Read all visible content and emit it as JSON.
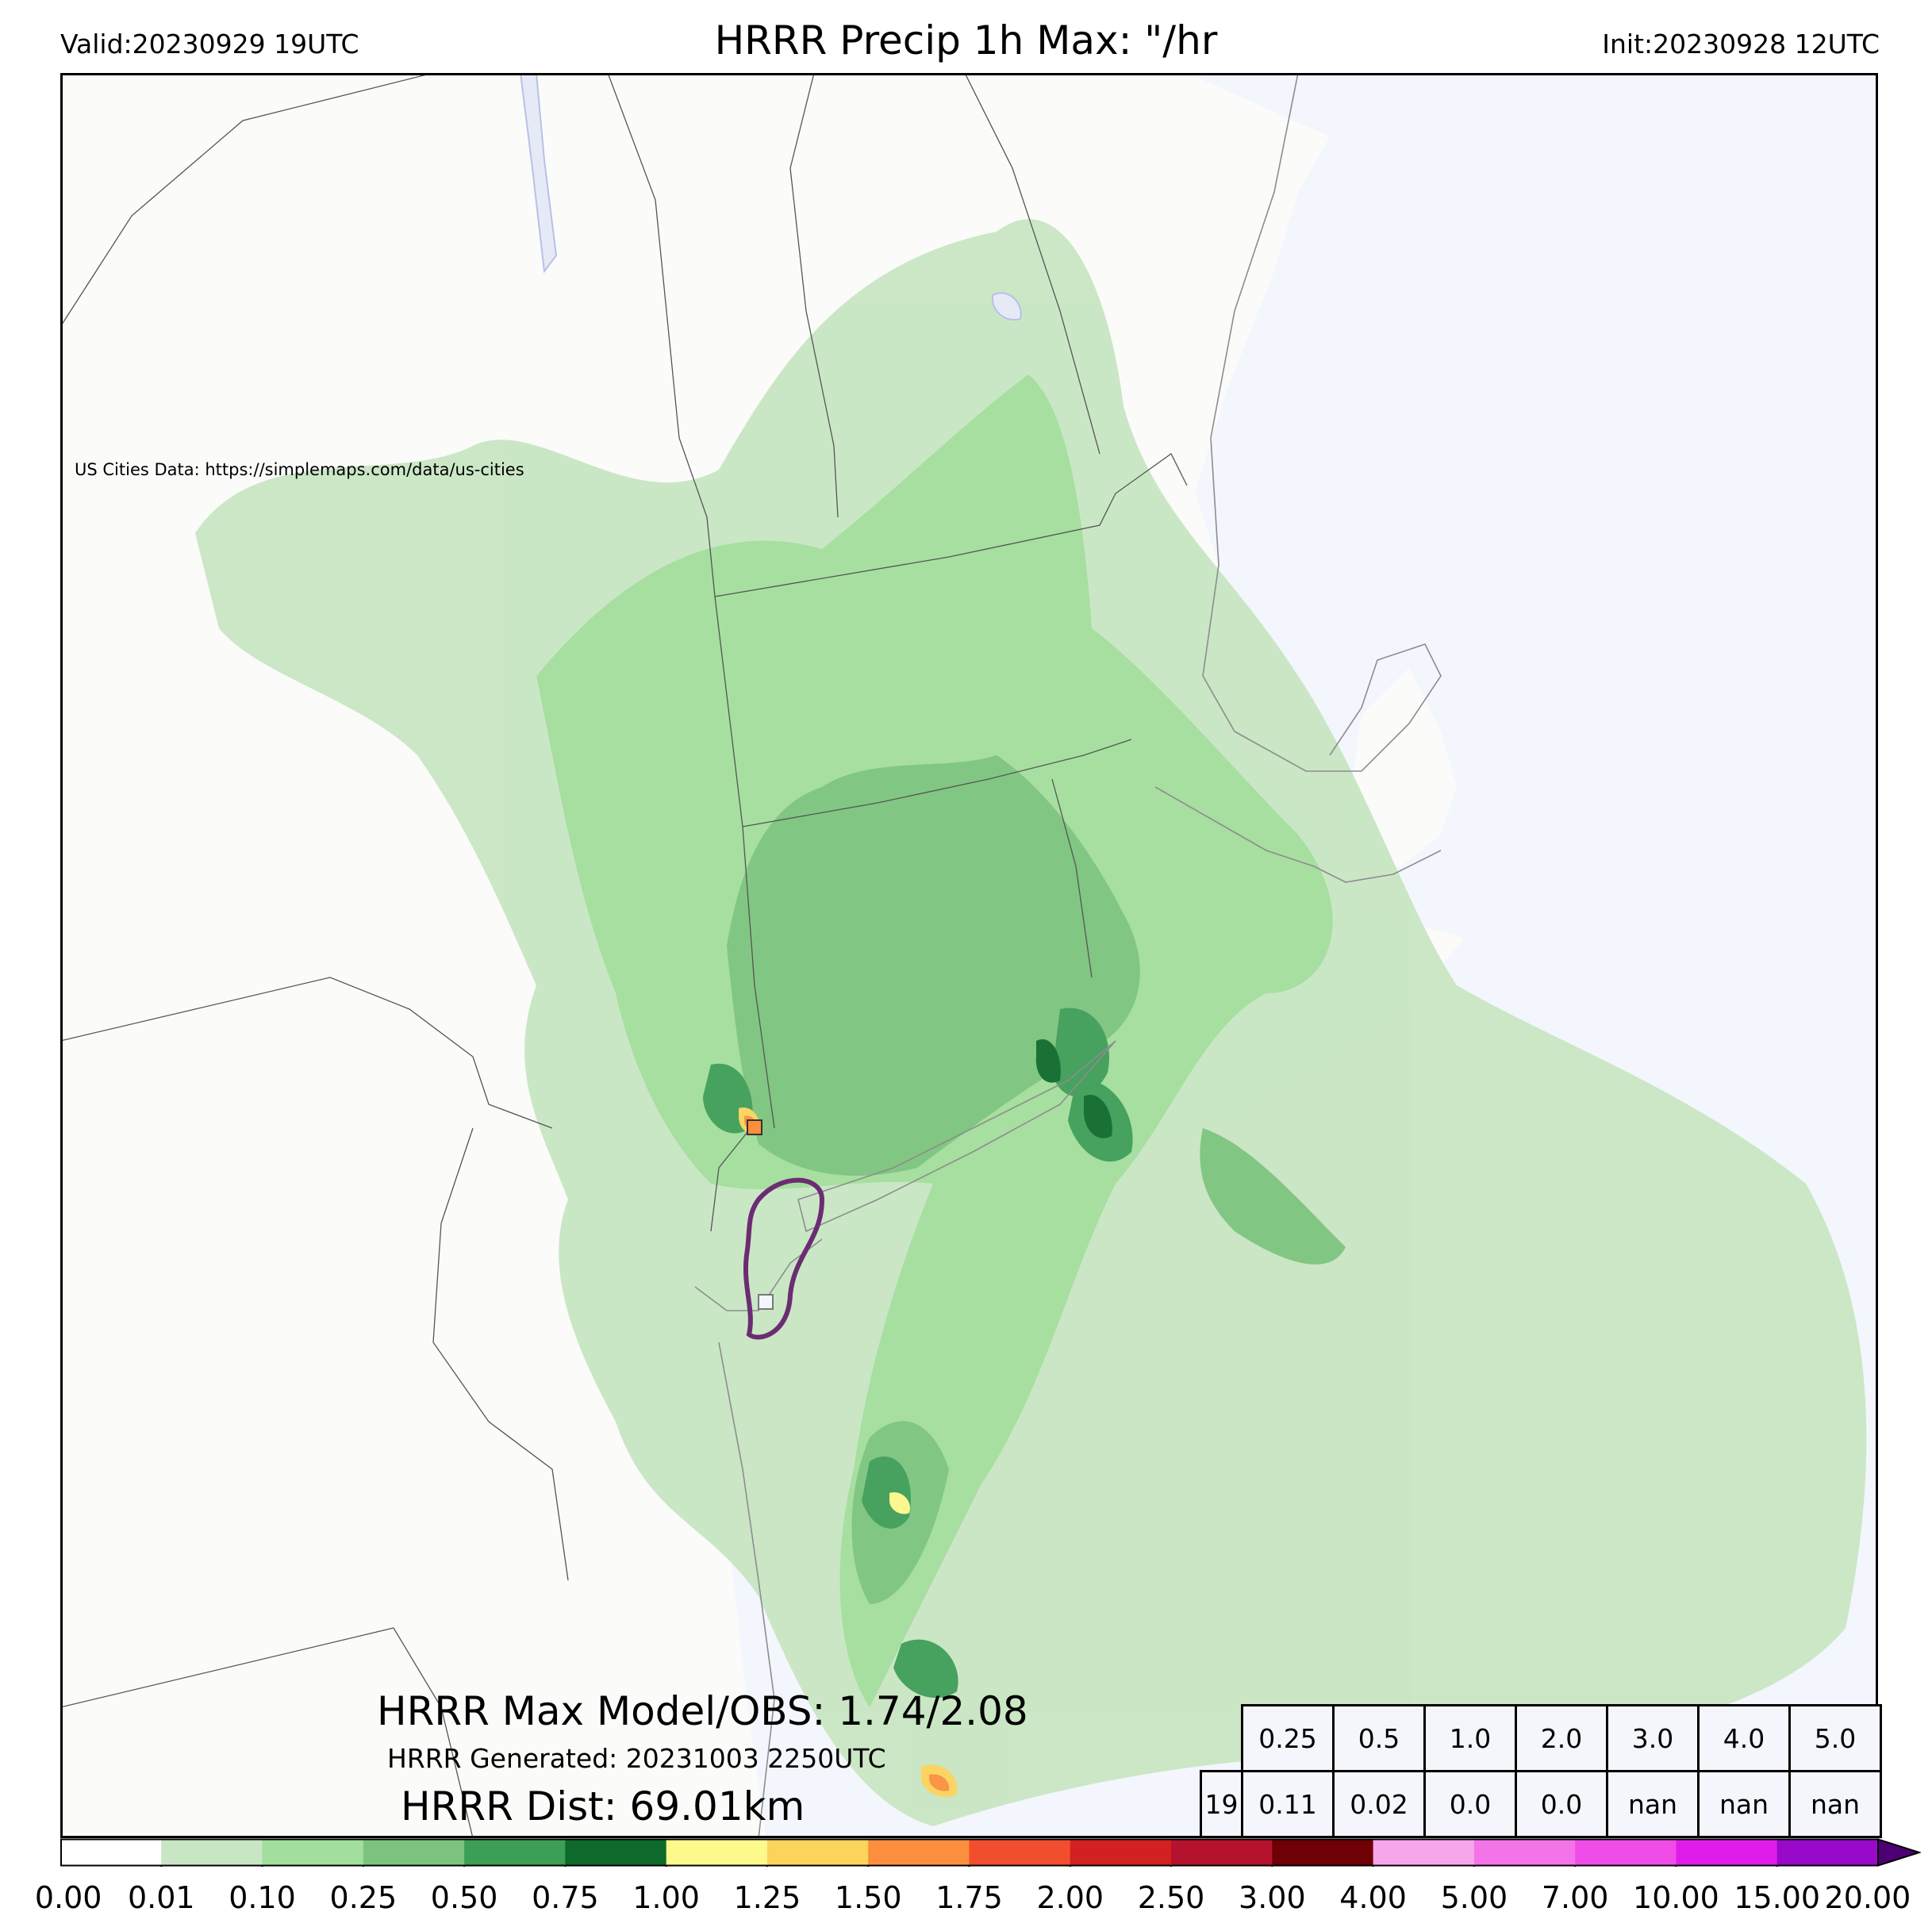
{
  "header": {
    "valid": "Valid:20230929 19UTC",
    "title": "HRRR Precip 1h Max: \"/hr",
    "init": "Init:20230928 12UTC"
  },
  "credit": "US Cities Data: https://simplemaps.com/data/us-cities",
  "stats": {
    "max_model_obs": "HRRR Max Model/OBS: 1.74/2.08",
    "generated": "HRRR Generated: 20231003 2250UTC",
    "dist": "HRRR Dist: 69.01km"
  },
  "threshold_table": {
    "thresholds": [
      "0.25",
      "0.5",
      "1.0",
      "2.0",
      "3.0",
      "4.0",
      "5.0"
    ],
    "row_label": "19",
    "values": [
      "0.11",
      "0.02",
      "0.0",
      "0.0",
      "nan",
      "nan",
      "nan"
    ]
  },
  "colorbar": {
    "labels": [
      "0.00",
      "0.01",
      "0.10",
      "0.25",
      "0.50",
      "0.75",
      "1.00",
      "1.25",
      "1.50",
      "1.75",
      "2.00",
      "2.50",
      "3.00",
      "4.00",
      "5.00",
      "7.00",
      "10.00",
      "15.00",
      "20.00"
    ],
    "colors": [
      "#ffffff",
      "#c8e6c3",
      "#a2de9c",
      "#7cc47d",
      "#3d9e56",
      "#0d6a2b",
      "#fdf98a",
      "#fcd35b",
      "#fb8f3e",
      "#f14e2e",
      "#d32020",
      "#b5122e",
      "#6e0006",
      "#f7a6ec",
      "#f374e8",
      "#f04ce8",
      "#e01ceb",
      "#9909c9"
    ],
    "extend_color": "#4c0073"
  },
  "map_colors": {
    "land": "#fbfbfa",
    "ocean": "#f3f6fc",
    "borders": "#555555",
    "coast": "#8d8d8d",
    "lakes": "#e6eaf6",
    "obs_contour": "#6b2c72"
  }
}
